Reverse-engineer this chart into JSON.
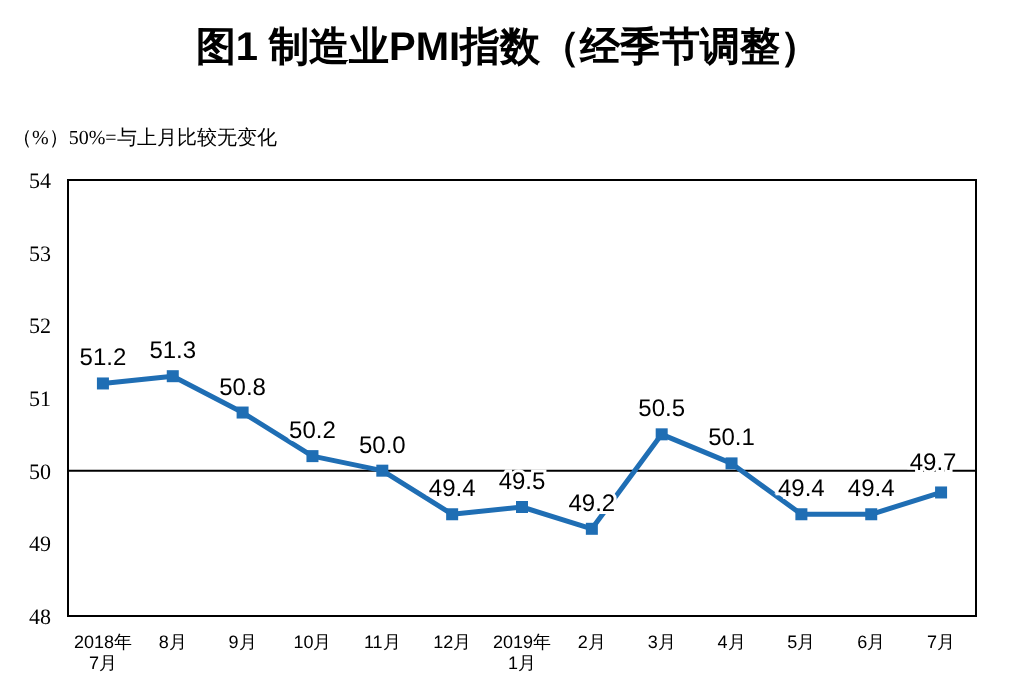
{
  "chart_data": {
    "type": "line",
    "title": "图1 制造业PMI指数（经季节调整）",
    "annotations": [
      "（%）50%=与上月比较无变化"
    ],
    "categories": [
      "2018年\n7月",
      "8月",
      "9月",
      "10月",
      "11月",
      "12月",
      "2019年\n1月",
      "2月",
      "3月",
      "4月",
      "5月",
      "6月",
      "7月"
    ],
    "series": [
      {
        "color": "#1f6eb4",
        "values": [
          51.2,
          51.3,
          50.8,
          50.2,
          50.0,
          49.4,
          49.5,
          49.2,
          50.5,
          50.1,
          49.4,
          49.4,
          49.7
        ],
        "value_labels": [
          "51.2",
          "51.3",
          "50.8",
          "50.2",
          "50.0",
          "49.4",
          "49.5",
          "49.2",
          "50.5",
          "50.1",
          "49.4",
          "49.4",
          "49.7"
        ]
      }
    ],
    "ylim": [
      48,
      54
    ],
    "yticks": [
      48,
      49,
      50,
      51,
      52,
      53,
      54
    ],
    "ref_lines": [
      {
        "axis": "y",
        "value": 50,
        "color": "#000000"
      }
    ],
    "grid": false,
    "marker": "square",
    "line_style": "solid"
  }
}
